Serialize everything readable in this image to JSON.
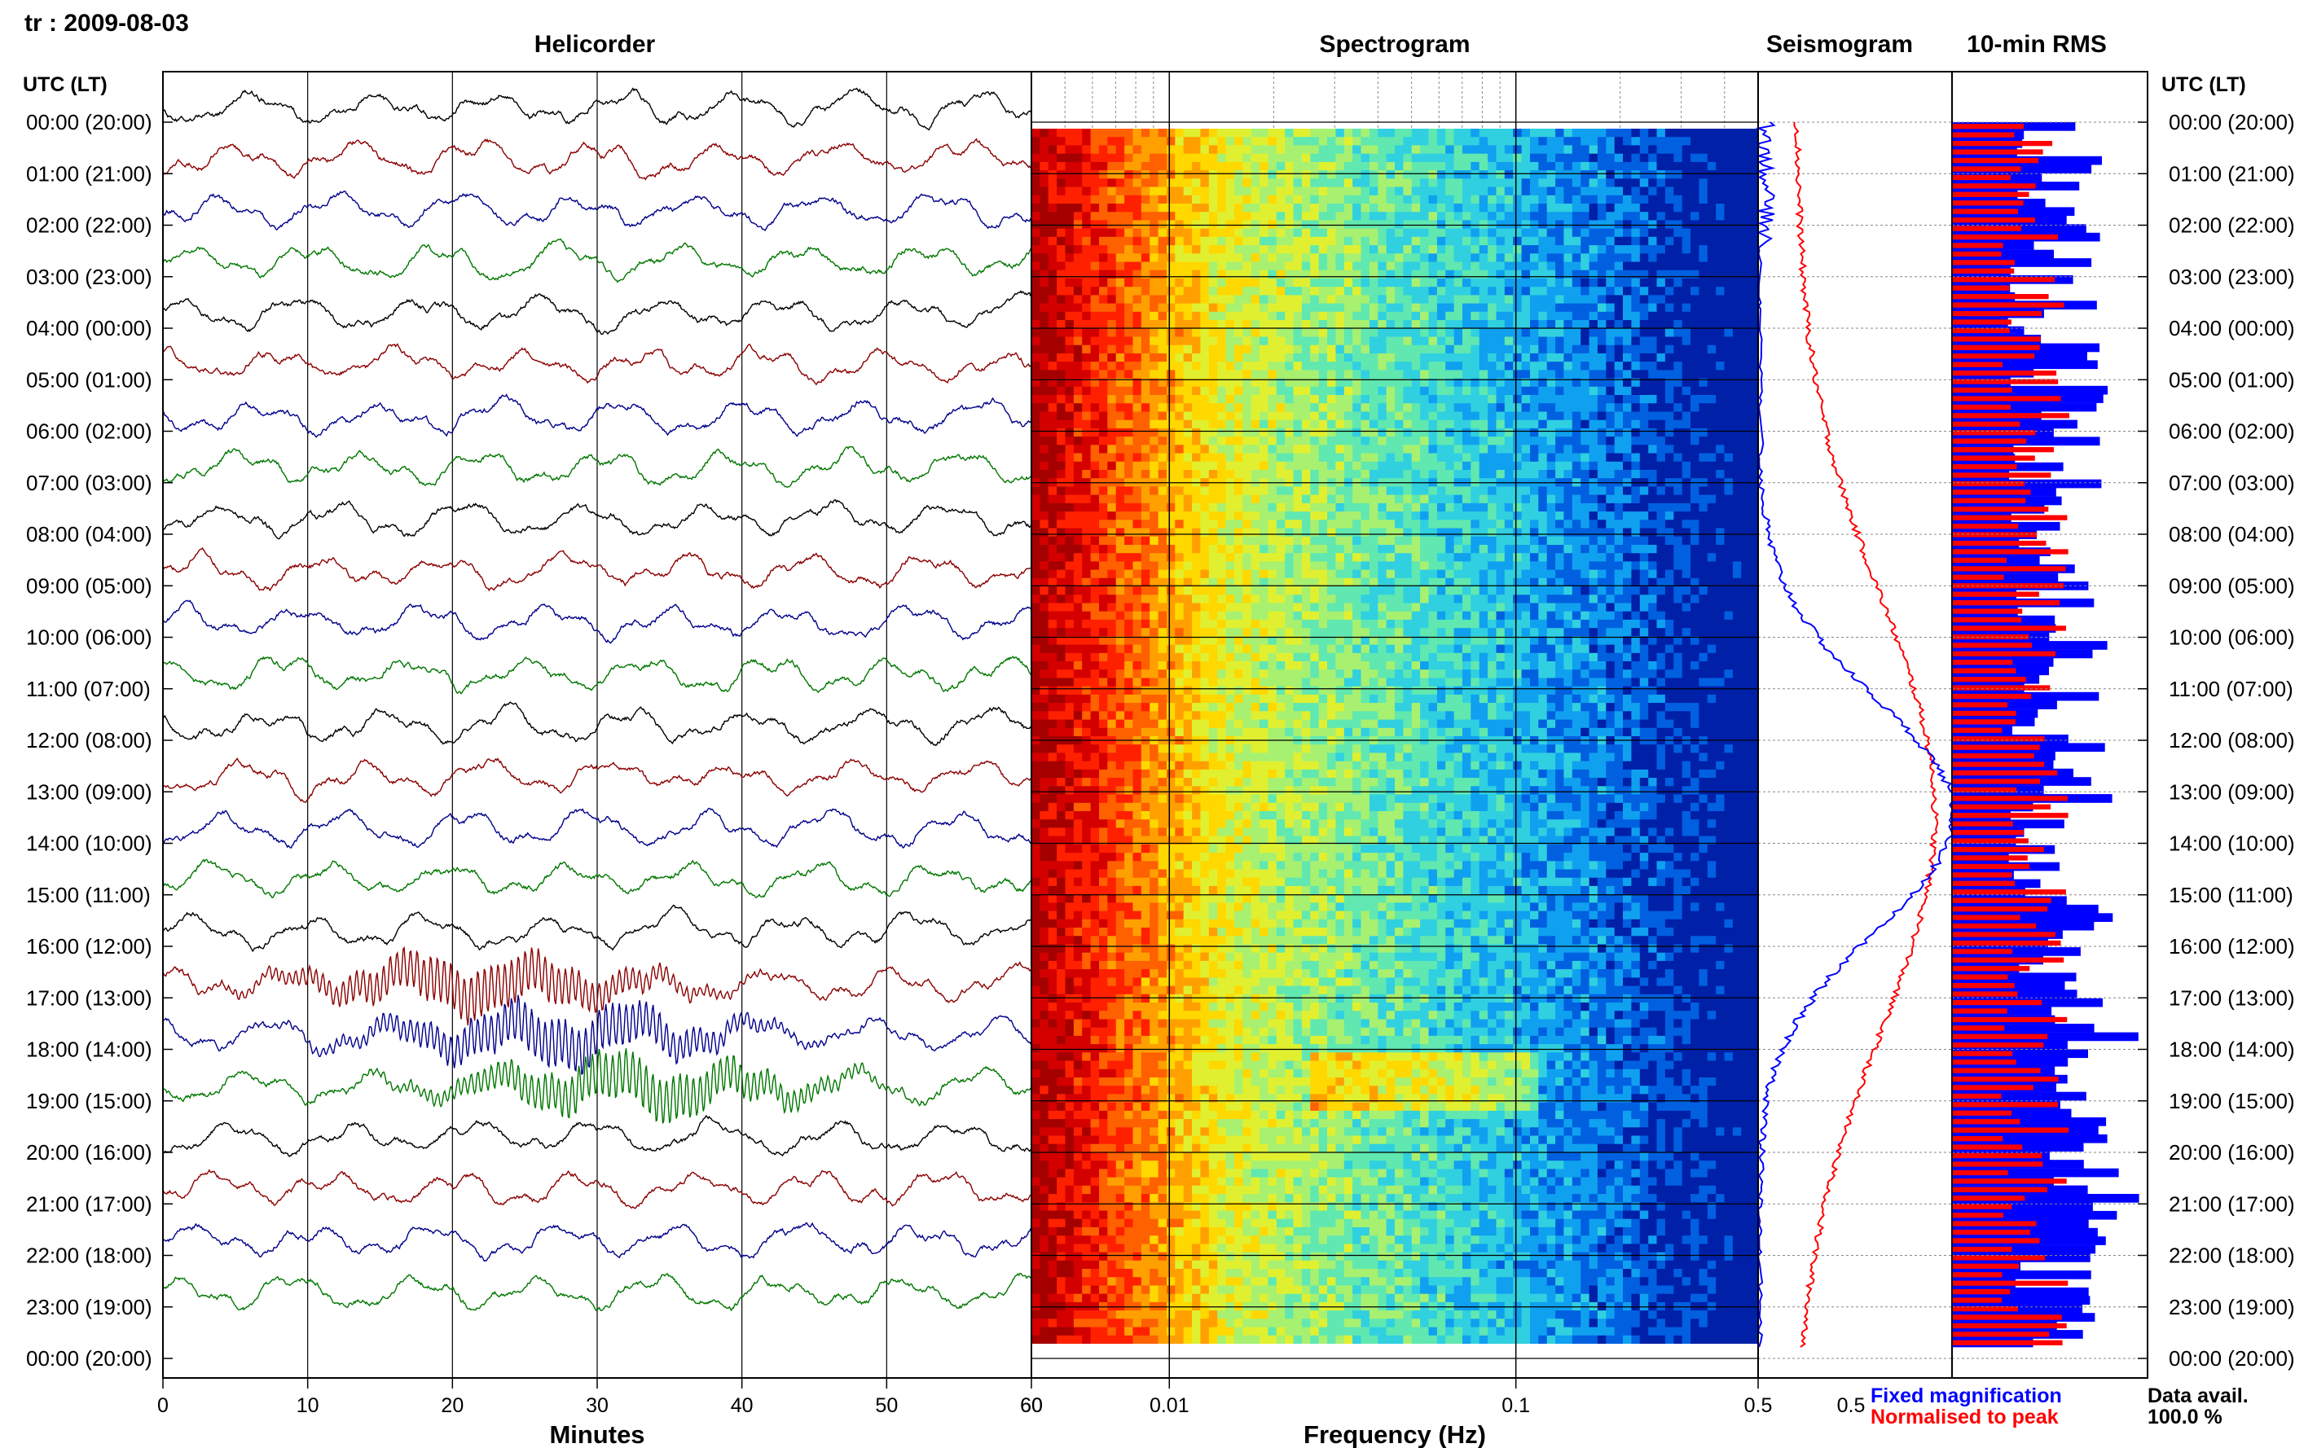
{
  "header": {
    "station_date": "tr : 2009-08-03"
  },
  "panels": {
    "helicorder": "Helicorder",
    "spectrogram": "Spectrogram",
    "seismogram": "Seismogram",
    "rms": "10-min RMS"
  },
  "axis": {
    "time_label_left": "UTC (LT)",
    "time_label_right": "UTC (LT)",
    "minutes_label": "Minutes",
    "frequency_label": "Frequency (Hz)"
  },
  "legend": {
    "fixed": "Fixed magnification",
    "normalised": "Normalised to peak",
    "data_avail_label": "Data avail.",
    "data_avail_value": "100.0 %"
  },
  "colors": {
    "trace_cycle": [
      "#000000",
      "#8b0000",
      "#00008b",
      "#007700"
    ],
    "fixed": "#0000ff",
    "normalised": "#ff0000"
  },
  "chart_data": [
    {
      "type": "line",
      "panel": "Helicorder",
      "xlabel": "Minutes",
      "xlim": [
        0,
        60
      ],
      "x_ticks": [
        "0",
        "10",
        "20",
        "30",
        "40",
        "50",
        "60"
      ],
      "rows": [
        "00:00 (20:00)",
        "01:00 (21:00)",
        "02:00 (22:00)",
        "03:00 (23:00)",
        "04:00 (00:00)",
        "05:00 (01:00)",
        "06:00 (02:00)",
        "07:00 (03:00)",
        "08:00 (04:00)",
        "09:00 (05:00)",
        "10:00 (06:00)",
        "11:00 (07:00)",
        "12:00 (08:00)",
        "13:00 (09:00)",
        "14:00 (10:00)",
        "15:00 (11:00)",
        "16:00 (12:00)",
        "17:00 (13:00)",
        "18:00 (14:00)",
        "19:00 (15:00)",
        "20:00 (16:00)",
        "21:00 (17:00)",
        "22:00 (18:00)",
        "23:00 (19:00)",
        "00:00 (20:00)"
      ]
    },
    {
      "type": "heatmap",
      "panel": "Spectrogram",
      "xlabel": "Frequency (Hz)",
      "x_scale": "log",
      "xlim": [
        0.004,
        0.5
      ],
      "x_ticks": [
        "0.01",
        "0.1",
        "0.5"
      ]
    },
    {
      "type": "line",
      "panel": "Seismogram",
      "series": [
        {
          "name": "Fixed magnification",
          "color": "#0000ff"
        },
        {
          "name": "Normalised to peak",
          "color": "#ff0000"
        }
      ]
    },
    {
      "type": "bar",
      "panel": "10-min RMS",
      "orientation": "horizontal",
      "series": [
        {
          "name": "Fixed magnification",
          "color": "#0000ff"
        },
        {
          "name": "Normalised to peak",
          "color": "#ff0000"
        }
      ]
    }
  ]
}
